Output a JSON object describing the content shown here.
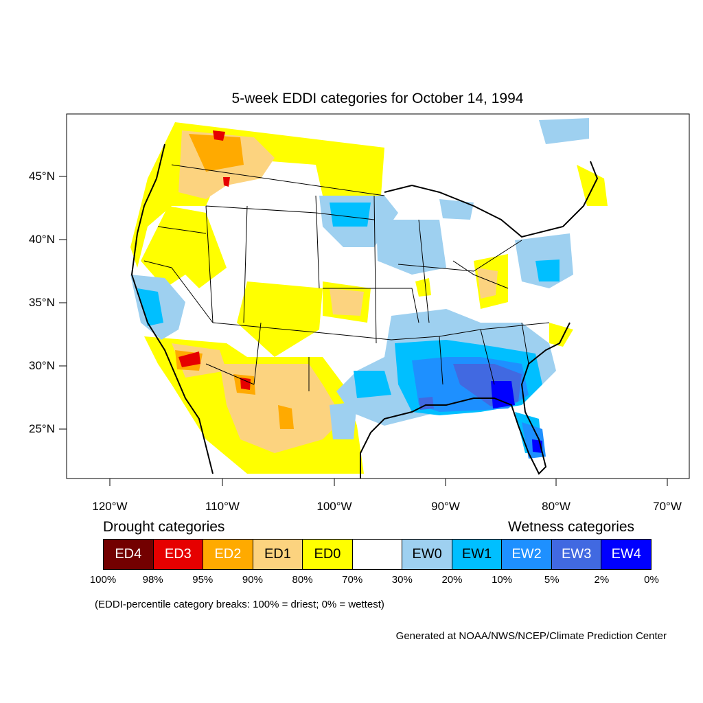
{
  "title": "5-week EDDI categories for October 14, 1994",
  "map": {
    "lat_labels": [
      "45°N",
      "40°N",
      "35°N",
      "30°N",
      "25°N"
    ],
    "lon_labels": [
      "120°W",
      "110°W",
      "100°W",
      "90°W",
      "80°W",
      "70°W"
    ]
  },
  "legend": {
    "drought_heading": "Drought categories",
    "wetness_heading": "Wetness categories",
    "categories": [
      {
        "label": "ED4",
        "color": "#730000",
        "text_color": "#ffffff"
      },
      {
        "label": "ED3",
        "color": "#e60000",
        "text_color": "#ffffff"
      },
      {
        "label": "ED2",
        "color": "#ffaa00",
        "text_color": "#ffffff"
      },
      {
        "label": "ED1",
        "color": "#fcd37f",
        "text_color": "#000000"
      },
      {
        "label": "ED0",
        "color": "#ffff00",
        "text_color": "#000000"
      },
      {
        "label": "",
        "color": "#ffffff",
        "text_color": "#000000"
      },
      {
        "label": "EW0",
        "color": "#9ed0f0",
        "text_color": "#000000"
      },
      {
        "label": "EW1",
        "color": "#00bfff",
        "text_color": "#000000"
      },
      {
        "label": "EW2",
        "color": "#1e90ff",
        "text_color": "#ffffff"
      },
      {
        "label": "EW3",
        "color": "#4169e1",
        "text_color": "#ffffff"
      },
      {
        "label": "EW4",
        "color": "#0000ff",
        "text_color": "#ffffff"
      }
    ],
    "percent_breaks": [
      "100%",
      "98%",
      "95%",
      "90%",
      "80%",
      "70%",
      "30%",
      "20%",
      "10%",
      "5%",
      "2%",
      "0%"
    ]
  },
  "note": "(EDDI-percentile category breaks: 100% = driest; 0% = wettest)",
  "credit": "Generated at NOAA/NWS/NCEP/Climate Prediction Center"
}
